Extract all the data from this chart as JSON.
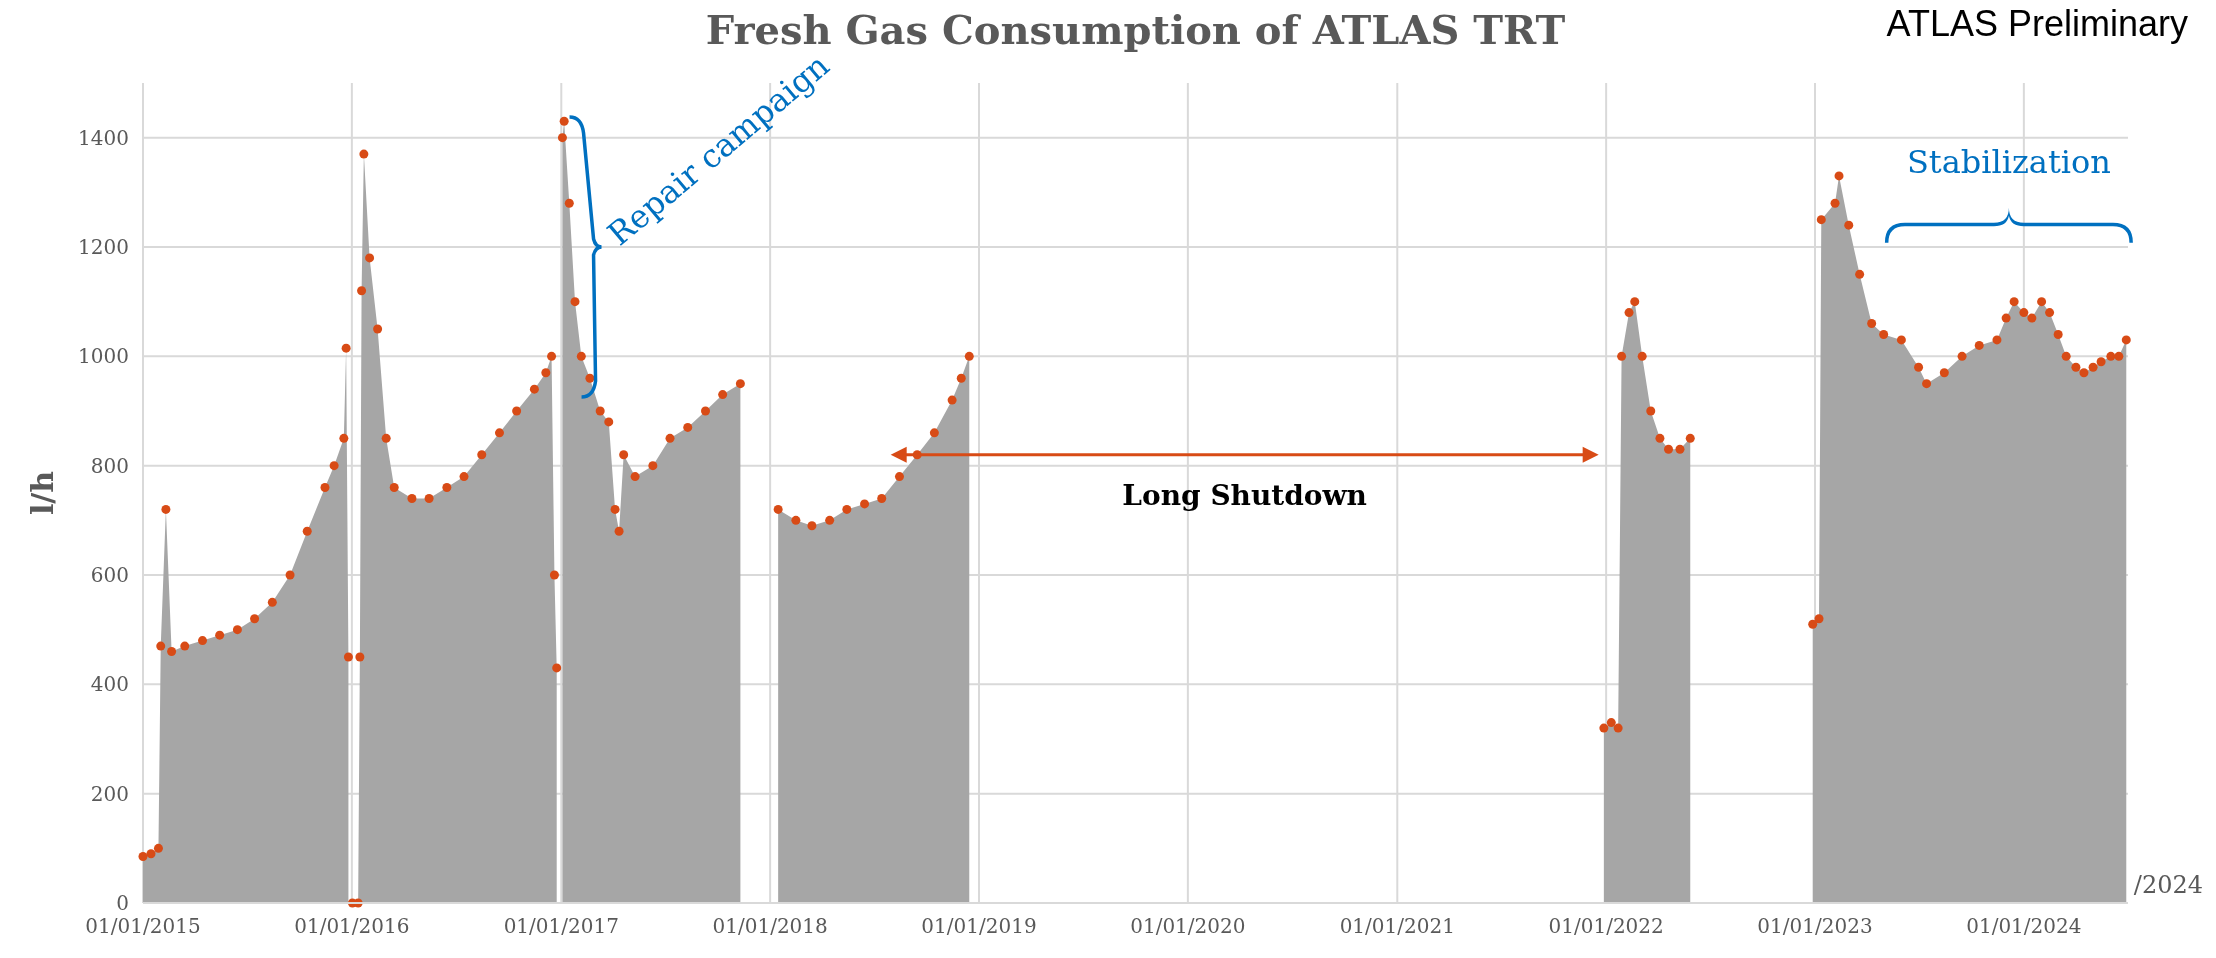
{
  "chart_data": {
    "type": "scatter",
    "title": "Fresh Gas Consumption of ATLAS TRT",
    "ylabel": "l/h",
    "x": [
      "2015-01-01",
      "2015-01-15",
      "2015-01-28",
      "2015-02-01",
      "2015-02-10",
      "2015-02-20",
      "2015-03-15",
      "2015-04-15",
      "2015-05-15",
      "2015-06-15",
      "2015-07-15",
      "2015-08-15",
      "2015-09-15",
      "2015-10-15",
      "2015-11-15",
      "2015-12-01",
      "2015-12-18",
      "2015-12-22",
      "2015-12-26",
      "2015-12-30",
      "2016-01-02",
      "2016-01-12",
      "2016-01-15",
      "2016-01-18",
      "2016-01-22",
      "2016-02-01",
      "2016-02-15",
      "2016-03-01",
      "2016-03-15",
      "2016-04-15",
      "2016-05-15",
      "2016-06-15",
      "2016-07-15",
      "2016-08-15",
      "2016-09-15",
      "2016-10-15",
      "2016-11-15",
      "2016-12-05",
      "2016-12-15",
      "2016-12-20",
      "2016-12-24",
      "2016-12-28",
      "2017-01-03",
      "2017-01-06",
      "2017-01-15",
      "2017-01-25",
      "2017-02-05",
      "2017-02-20",
      "2017-03-10",
      "2017-03-25",
      "2017-04-05",
      "2017-04-12",
      "2017-04-20",
      "2017-05-10",
      "2017-06-10",
      "2017-07-10",
      "2017-08-10",
      "2017-09-10",
      "2017-10-10",
      "2017-11-10",
      "2017-11-15",
      "2018-01-15",
      "2018-02-15",
      "2018-03-15",
      "2018-04-15",
      "2018-05-15",
      "2018-06-15",
      "2018-07-15",
      "2018-08-15",
      "2018-09-15",
      "2018-10-15",
      "2018-11-15",
      "2018-12-01",
      "2018-12-15",
      "2018-12-20",
      "2021-12-28",
      "2022-01-10",
      "2022-01-22",
      "2022-01-28",
      "2022-02-10",
      "2022-02-20",
      "2022-03-05",
      "2022-03-20",
      "2022-04-05",
      "2022-04-20",
      "2022-05-10",
      "2022-05-28",
      "2022-06-02",
      "2022-12-28",
      "2023-01-08",
      "2023-01-12",
      "2023-02-05",
      "2023-02-12",
      "2023-03-01",
      "2023-03-20",
      "2023-04-10",
      "2023-05-01",
      "2023-06-01",
      "2023-07-01",
      "2023-07-15",
      "2023-08-15",
      "2023-09-15",
      "2023-10-15",
      "2023-11-15",
      "2023-12-01",
      "2023-12-15",
      "2024-01-01",
      "2024-01-15",
      "2024-02-01",
      "2024-02-15",
      "2024-03-01",
      "2024-03-15",
      "2024-04-01",
      "2024-04-15",
      "2024-05-01",
      "2024-05-15",
      "2024-06-01",
      "2024-06-15",
      "2024-06-28"
    ],
    "series": [
      {
        "type": "area",
        "color": "#a6a6a6",
        "values": [
          85,
          90,
          100,
          470,
          720,
          460,
          470,
          480,
          490,
          500,
          520,
          550,
          600,
          680,
          760,
          800,
          850,
          1015,
          450,
          null,
          0,
          0,
          450,
          1120,
          1370,
          1180,
          1050,
          850,
          760,
          740,
          740,
          760,
          780,
          820,
          860,
          900,
          940,
          970,
          1000,
          600,
          430,
          null,
          1400,
          1430,
          1280,
          1100,
          1000,
          960,
          900,
          880,
          720,
          680,
          820,
          780,
          800,
          850,
          870,
          900,
          930,
          950,
          null,
          720,
          700,
          690,
          700,
          720,
          730,
          740,
          780,
          820,
          860,
          920,
          960,
          1000,
          null,
          320,
          330,
          320,
          1000,
          1080,
          1100,
          1000,
          900,
          850,
          830,
          830,
          850,
          null,
          510,
          520,
          1250,
          1280,
          1330,
          1240,
          1150,
          1060,
          1040,
          1030,
          980,
          950,
          970,
          1000,
          1020,
          1030,
          1070,
          1100,
          1080,
          1070,
          1100,
          1080,
          1040,
          1000,
          980,
          970,
          980,
          990,
          1000,
          1000,
          1030
        ]
      },
      {
        "color": "#d84b16",
        "values": [
          85,
          90,
          100,
          470,
          720,
          460,
          470,
          480,
          490,
          500,
          520,
          550,
          600,
          680,
          760,
          800,
          850,
          1015,
          450,
          null,
          0,
          0,
          450,
          1120,
          1370,
          1180,
          1050,
          850,
          760,
          740,
          740,
          760,
          780,
          820,
          860,
          900,
          940,
          970,
          1000,
          600,
          430,
          null,
          1400,
          1430,
          1280,
          1100,
          1000,
          960,
          900,
          880,
          720,
          680,
          820,
          780,
          800,
          850,
          870,
          900,
          930,
          950,
          null,
          720,
          700,
          690,
          700,
          720,
          730,
          740,
          780,
          820,
          860,
          920,
          960,
          1000,
          null,
          320,
          330,
          320,
          1000,
          1080,
          1100,
          1000,
          900,
          850,
          830,
          830,
          850,
          null,
          510,
          520,
          1250,
          1280,
          1330,
          1240,
          1150,
          1060,
          1040,
          1030,
          980,
          950,
          970,
          1000,
          1020,
          1030,
          1070,
          1100,
          1080,
          1070,
          1100,
          1080,
          1040,
          1000,
          980,
          970,
          980,
          990,
          1000,
          1000,
          1030
        ]
      }
    ],
    "grid": true,
    "xlim": [
      "2015-01-01",
      "2024-07-01"
    ],
    "xticks": [
      {
        "value": "2015-01-01",
        "label": "01/01/2015"
      },
      {
        "value": "2016-01-01",
        "label": "01/01/2016"
      },
      {
        "value": "2017-01-01",
        "label": "01/01/2017"
      },
      {
        "value": "2018-01-01",
        "label": "01/01/2018"
      },
      {
        "value": "2019-01-01",
        "label": "01/01/2019"
      },
      {
        "value": "2020-01-01",
        "label": "01/01/2020"
      },
      {
        "value": "2021-01-01",
        "label": "01/01/2021"
      },
      {
        "value": "2022-01-01",
        "label": "01/01/2022"
      },
      {
        "value": "2023-01-01",
        "label": "01/01/2023"
      },
      {
        "value": "2024-01-01",
        "label": "01/01/2024"
      }
    ],
    "ylim": [
      0,
      1500
    ],
    "yticks": [
      0,
      200,
      400,
      600,
      800,
      1000,
      1200,
      1400
    ],
    "annotations": [
      "Repair campaign",
      "Long Shutdown",
      "Stabilization",
      "ATLAS Preliminary",
      "/2024"
    ]
  }
}
